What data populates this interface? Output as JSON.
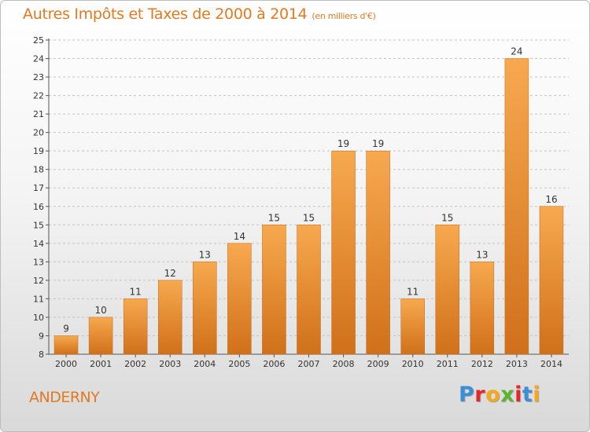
{
  "header": {
    "title": "Autres Impôts et Taxes de 2000 à 2014",
    "subtitle": "(en milliers d'€)"
  },
  "footer": {
    "city": "ANDERNY",
    "logo_text": "Proxiti",
    "logo_colors": [
      "#3a8fd6",
      "#e3282a",
      "#f5a81c",
      "#5cb531",
      "#e3282a",
      "#3a8fd6",
      "#f5a81c"
    ]
  },
  "colors": {
    "bar_top": "#f7a94f",
    "bar_bottom": "#d0701a",
    "title": "#e37a1f",
    "grid": "#c4c4c4"
  },
  "chart_data": {
    "type": "bar",
    "title": "Autres Impôts et Taxes de 2000 à 2014",
    "subtitle": "(en milliers d'€)",
    "categories": [
      "2000",
      "2001",
      "2002",
      "2003",
      "2004",
      "2005",
      "2006",
      "2007",
      "2008",
      "2009",
      "2010",
      "2011",
      "2012",
      "2013",
      "2014"
    ],
    "values": [
      9,
      10,
      11,
      12,
      13,
      14,
      15,
      15,
      19,
      19,
      11,
      15,
      13,
      24,
      16
    ],
    "ylim": [
      8,
      25
    ],
    "yticks": [
      8,
      9,
      10,
      11,
      12,
      13,
      14,
      15,
      16,
      17,
      18,
      19,
      20,
      21,
      22,
      23,
      24,
      25
    ],
    "xlabel": "",
    "ylabel": "",
    "grid": true,
    "data_labels": true
  }
}
